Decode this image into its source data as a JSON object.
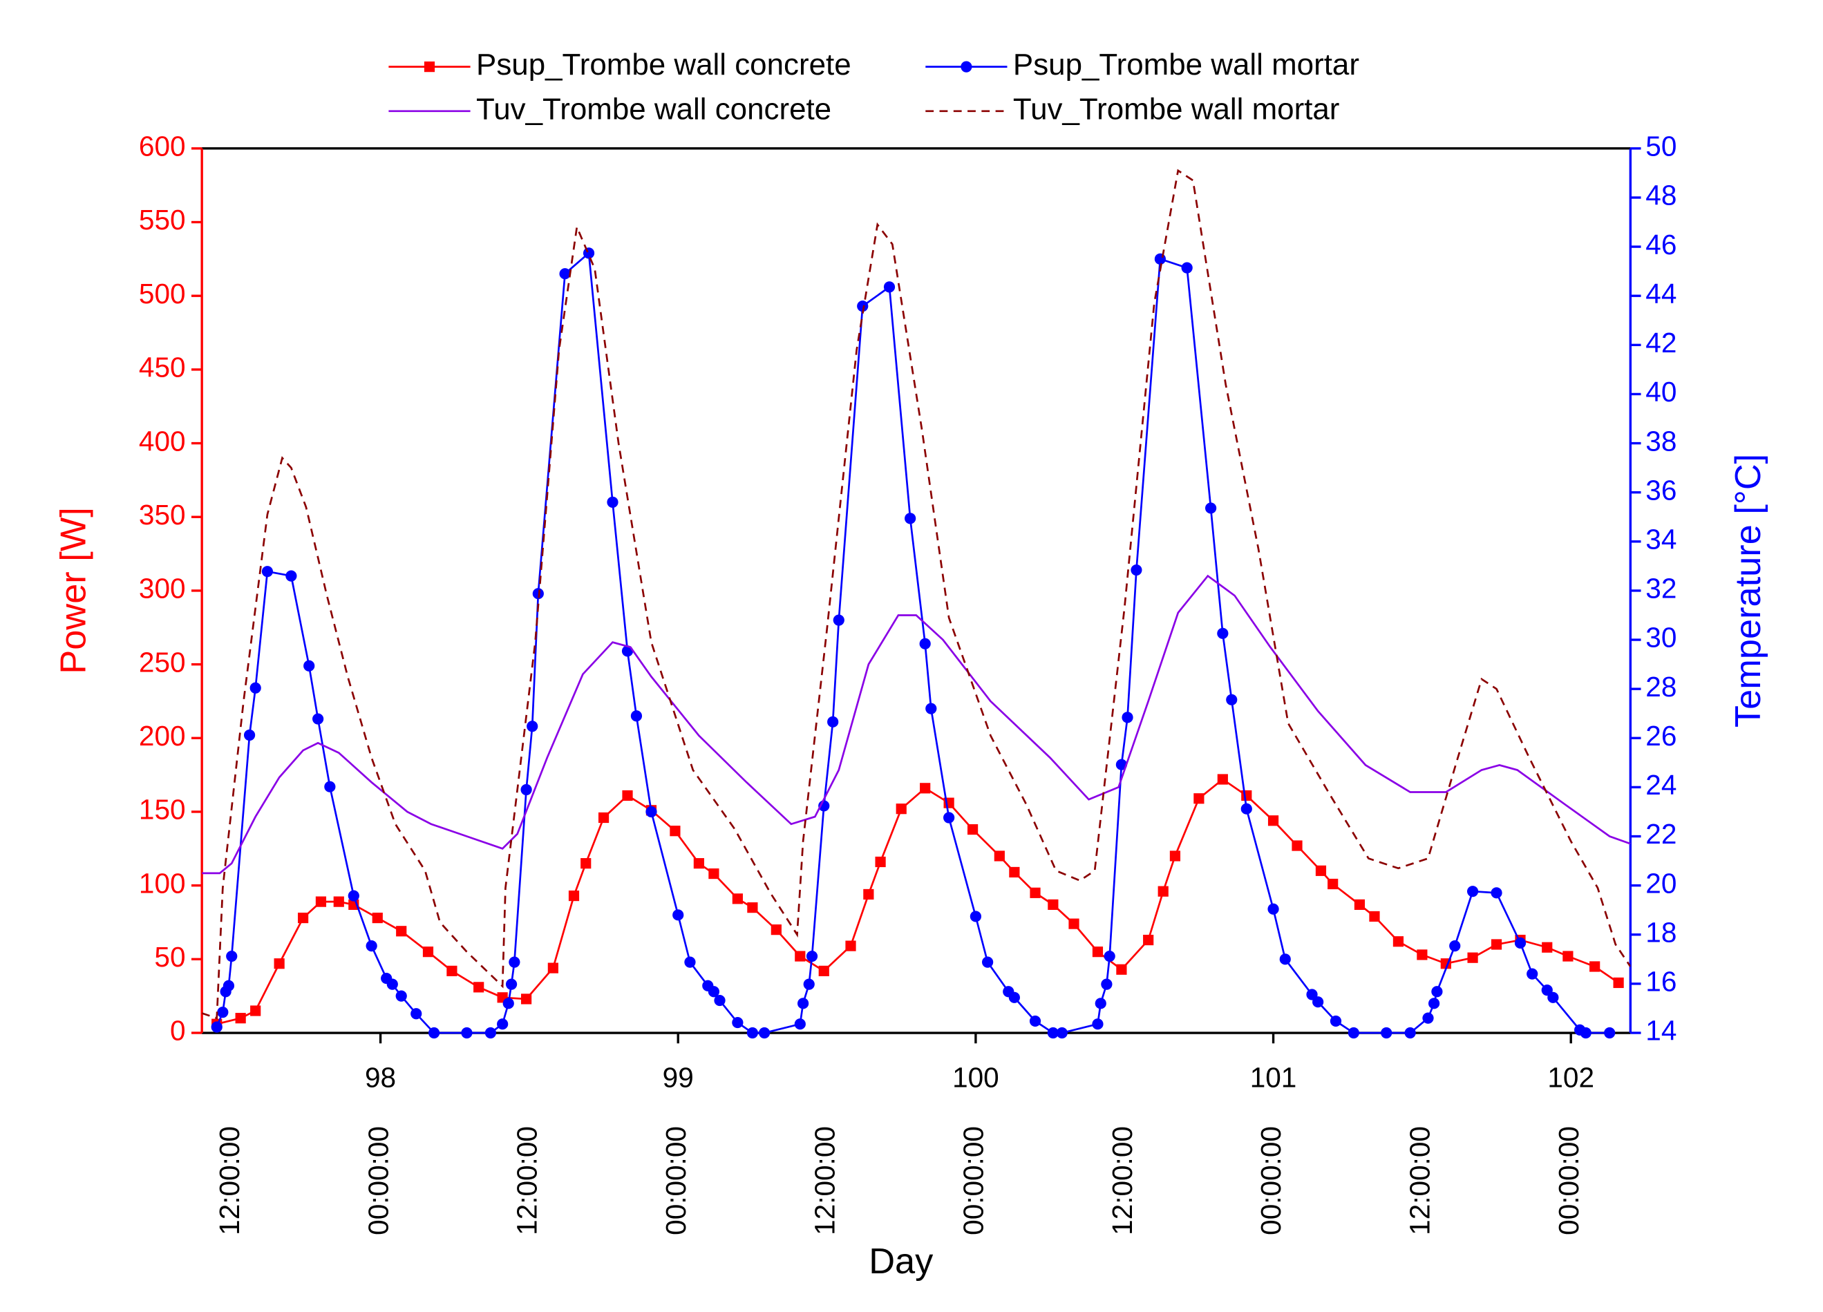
{
  "chart_data": {
    "type": "line",
    "x_label": "Day",
    "y_label": "Power [W]",
    "y2_label": "Temperature [°C]",
    "xlim": [
      97.4,
      102.2
    ],
    "xticks": [
      98,
      99,
      100,
      101,
      102
    ],
    "xticks2": [
      {
        "value": 97.5,
        "label": "12:00:00"
      },
      {
        "value": 98,
        "label": "00:00:00"
      },
      {
        "value": 98.5,
        "label": "12:00:00"
      },
      {
        "value": 99,
        "label": "00:00:00"
      },
      {
        "value": 99.5,
        "label": "12:00:00"
      },
      {
        "value": 100,
        "label": "00:00:00"
      },
      {
        "value": 100.5,
        "label": "12:00:00"
      },
      {
        "value": 101,
        "label": "00:00:00"
      },
      {
        "value": 101.5,
        "label": "12:00:00"
      },
      {
        "value": 102,
        "label": "00:00:00"
      }
    ],
    "ylim": [
      0,
      600
    ],
    "yticks": [
      0,
      50,
      100,
      150,
      200,
      250,
      300,
      350,
      400,
      450,
      500,
      550,
      600
    ],
    "y_color": "#ff0000",
    "y2lim": [
      14,
      50
    ],
    "y2ticks": [
      14,
      16,
      18,
      20,
      22,
      24,
      26,
      28,
      30,
      32,
      34,
      36,
      38,
      40,
      42,
      44,
      46,
      48,
      50
    ],
    "y2_color": "#0000ff",
    "legend": "top",
    "series": [
      {
        "name": "Psup_Trombe wall concrete",
        "color": "#ff0000",
        "marker": "square",
        "dash": false,
        "axis": "y",
        "x": [
          97.45,
          97.53,
          97.58,
          97.66,
          97.74,
          97.8,
          97.86,
          97.91,
          97.99,
          98.07,
          98.16,
          98.24,
          98.33,
          98.41,
          98.49,
          98.58,
          98.65,
          98.69,
          98.75,
          98.83,
          98.91,
          98.99,
          99.07,
          99.12,
          99.2,
          99.25,
          99.33,
          99.41,
          99.49,
          99.58,
          99.64,
          99.68,
          99.75,
          99.83,
          99.91,
          99.99,
          100.08,
          100.13,
          100.2,
          100.26,
          100.33,
          100.41,
          100.49,
          100.58,
          100.63,
          100.67,
          100.75,
          100.83,
          100.91,
          101.0,
          101.08,
          101.16,
          101.2,
          101.29,
          101.34,
          101.42,
          101.5,
          101.58,
          101.67,
          101.75,
          101.83,
          101.92,
          101.99,
          102.08,
          102.16
        ],
        "values": [
          6,
          10,
          15,
          47,
          78,
          89,
          89,
          87,
          78,
          69,
          55,
          42,
          31,
          24,
          23,
          44,
          93,
          115,
          146,
          161,
          151,
          137,
          115,
          108,
          91,
          85,
          70,
          52,
          42,
          59,
          94,
          116,
          152,
          166,
          156,
          138,
          120,
          109,
          95,
          87,
          74,
          55,
          43,
          63,
          96,
          120,
          159,
          172,
          161,
          144,
          127,
          110,
          101,
          87,
          79,
          62,
          53,
          47,
          51,
          60,
          63,
          58,
          52,
          45,
          34
        ]
      },
      {
        "name": "Psup_Trombe wall mortar",
        "color": "#0000ff",
        "marker": "circle",
        "dash": false,
        "axis": "y",
        "x": [
          97.45,
          97.47,
          97.48,
          97.49,
          97.5,
          97.56,
          97.58,
          97.62,
          97.7,
          97.76,
          97.79,
          97.83,
          97.91,
          97.97,
          98.02,
          98.04,
          98.07,
          98.12,
          98.18,
          98.29,
          98.37,
          98.41,
          98.43,
          98.44,
          98.45,
          98.49,
          98.51,
          98.53,
          98.62,
          98.7,
          98.78,
          98.83,
          98.86,
          98.91,
          99.0,
          99.04,
          99.1,
          99.12,
          99.14,
          99.2,
          99.25,
          99.29,
          99.41,
          99.42,
          99.44,
          99.45,
          99.49,
          99.52,
          99.54,
          99.62,
          99.71,
          99.78,
          99.83,
          99.85,
          99.91,
          100.0,
          100.04,
          100.11,
          100.13,
          100.2,
          100.26,
          100.29,
          100.41,
          100.42,
          100.44,
          100.45,
          100.49,
          100.51,
          100.54,
          100.62,
          100.71,
          100.79,
          100.83,
          100.86,
          100.91,
          101.0,
          101.04,
          101.13,
          101.15,
          101.21,
          101.27,
          101.38,
          101.46,
          101.52,
          101.54,
          101.55,
          101.61,
          101.67,
          101.75,
          101.83,
          101.87,
          101.92,
          101.94,
          102.03,
          102.05,
          102.13
        ],
        "values": [
          4,
          14,
          28,
          32,
          52,
          202,
          234,
          313,
          310,
          249,
          213,
          167,
          93,
          59,
          37,
          33,
          25,
          13,
          0,
          0,
          0,
          6,
          20,
          33,
          48,
          165,
          208,
          298,
          515,
          529,
          360,
          259,
          215,
          150,
          80,
          48,
          32,
          28,
          22,
          7,
          0,
          0,
          6,
          20,
          33,
          52,
          154,
          211,
          280,
          493,
          506,
          349,
          264,
          220,
          146,
          79,
          48,
          28,
          24,
          8,
          0,
          0,
          6,
          20,
          33,
          52,
          182,
          214,
          314,
          525,
          519,
          356,
          271,
          226,
          152,
          84,
          50,
          26,
          21,
          8,
          0,
          0,
          0,
          10,
          20,
          28,
          59,
          96,
          95,
          61,
          40,
          29,
          24,
          2,
          0,
          0
        ]
      },
      {
        "name": "Tuv_Trombe wall concrete",
        "color": "#8a00e6",
        "marker": null,
        "dash": false,
        "axis": "y2",
        "x": [
          97.4,
          97.46,
          97.5,
          97.58,
          97.66,
          97.74,
          97.79,
          97.86,
          97.97,
          98.09,
          98.17,
          98.29,
          98.41,
          98.46,
          98.56,
          98.68,
          98.78,
          98.84,
          98.91,
          99.07,
          99.23,
          99.38,
          99.46,
          99.54,
          99.64,
          99.74,
          99.8,
          99.89,
          100.05,
          100.25,
          100.38,
          100.48,
          100.58,
          100.68,
          100.78,
          100.87,
          100.99,
          101.15,
          101.31,
          101.46,
          101.58,
          101.7,
          101.76,
          101.82,
          101.98,
          102.13,
          102.2
        ],
        "values": [
          20.5,
          20.5,
          20.9,
          22.8,
          24.4,
          25.5,
          25.8,
          25.4,
          24.2,
          23.0,
          22.5,
          22.0,
          21.5,
          22.1,
          25.2,
          28.6,
          29.9,
          29.7,
          28.5,
          26.1,
          24.2,
          22.5,
          22.8,
          24.7,
          29.0,
          31.0,
          31.0,
          30.0,
          27.5,
          25.2,
          23.5,
          24.0,
          27.5,
          31.1,
          32.6,
          31.8,
          29.7,
          27.1,
          24.9,
          23.8,
          23.8,
          24.7,
          24.9,
          24.7,
          23.3,
          22.0,
          21.7
        ]
      },
      {
        "name": "Tuv_Trombe wall mortar",
        "color": "#8b0000",
        "marker": null,
        "dash": true,
        "axis": "y2",
        "x": [
          97.4,
          97.45,
          97.47,
          97.54,
          97.62,
          97.67,
          97.7,
          97.75,
          97.82,
          97.89,
          97.97,
          98.05,
          98.15,
          98.2,
          98.29,
          98.41,
          98.42,
          98.52,
          98.6,
          98.66,
          98.72,
          98.8,
          98.91,
          99.05,
          99.19,
          99.31,
          99.4,
          99.42,
          99.5,
          99.6,
          99.67,
          99.72,
          99.82,
          99.91,
          100.05,
          100.17,
          100.27,
          100.35,
          100.4,
          100.5,
          100.6,
          100.68,
          100.73,
          100.84,
          100.95,
          101.05,
          101.19,
          101.32,
          101.42,
          101.52,
          101.62,
          101.7,
          101.75,
          101.86,
          102.0,
          102.09,
          102.15,
          102.2
        ],
        "values": [
          14.8,
          14.6,
          19.9,
          27.5,
          35.1,
          37.4,
          37.0,
          35.4,
          31.8,
          28.5,
          25.2,
          22.5,
          20.6,
          18.5,
          17.3,
          15.9,
          19.9,
          29.9,
          41.8,
          46.8,
          45.1,
          38.0,
          29.9,
          24.7,
          22.3,
          19.7,
          18.0,
          21.8,
          30.4,
          41.8,
          46.9,
          46.1,
          38.5,
          30.9,
          26.1,
          23.3,
          20.6,
          20.2,
          20.6,
          31.3,
          43.7,
          49.1,
          48.7,
          40.4,
          33.7,
          26.6,
          23.7,
          21.1,
          20.7,
          21.1,
          25.2,
          28.4,
          28.0,
          25.2,
          21.8,
          19.9,
          17.6,
          16.7
        ]
      }
    ]
  }
}
